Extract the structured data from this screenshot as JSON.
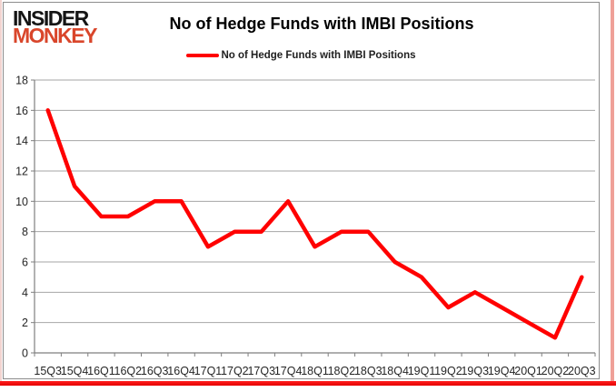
{
  "logo": {
    "line1": "INSIDER",
    "line2": "MONKEY"
  },
  "header": {
    "title": "No of Hedge Funds with IMBI Positions"
  },
  "legend": {
    "label": "No of Hedge Funds with IMBI Positions"
  },
  "colors": {
    "series": "#ff0000",
    "logo_accent": "#d9462b",
    "gridline": "#a6a6a6",
    "axis": "#7f7f7f",
    "tick_text": "#262626",
    "bottom_bar": "#e60000"
  },
  "chart_data": {
    "type": "line",
    "title": "No of Hedge Funds with IMBI Positions",
    "series": [
      {
        "name": "No of Hedge Funds with IMBI Positions",
        "values": [
          16,
          11,
          9,
          9,
          10,
          10,
          7,
          8,
          8,
          10,
          7,
          8,
          8,
          6,
          5,
          3,
          4,
          3,
          2,
          1,
          5
        ]
      }
    ],
    "categories": [
      "15Q3",
      "15Q4",
      "16Q1",
      "16Q2",
      "16Q3",
      "16Q4",
      "17Q1",
      "17Q2",
      "17Q3",
      "17Q4",
      "18Q1",
      "18Q2",
      "18Q3",
      "18Q4",
      "19Q1",
      "19Q2",
      "19Q3",
      "19Q4",
      "20Q1",
      "20Q2",
      "20Q3"
    ],
    "xlabel": "",
    "ylabel": "",
    "ylim": [
      0,
      18
    ],
    "ytick_step": 2,
    "grid": "horizontal",
    "legend_position": "top"
  }
}
